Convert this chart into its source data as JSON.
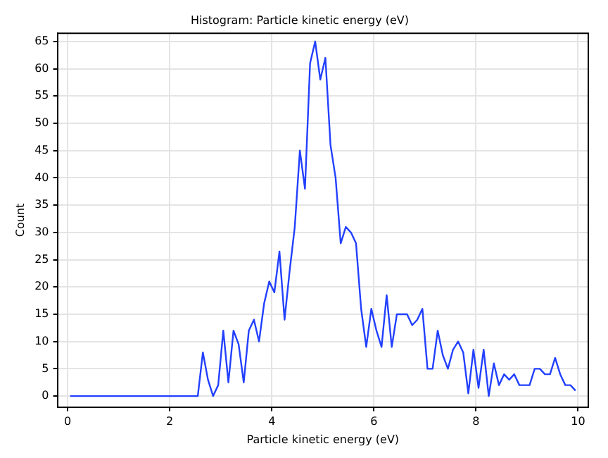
{
  "chart_data": {
    "type": "line",
    "title": "Histogram: Particle kinetic energy (eV)",
    "xlabel": "Particle kinetic energy (eV)",
    "ylabel": "Count",
    "x": [
      0.05,
      2.55,
      2.65,
      2.75,
      2.85,
      2.95,
      3.05,
      3.15,
      3.25,
      3.35,
      3.45,
      3.55,
      3.65,
      3.75,
      3.85,
      3.95,
      4.05,
      4.15,
      4.25,
      4.35,
      4.45,
      4.55,
      4.65,
      4.75,
      4.85,
      4.95,
      5.05,
      5.15,
      5.25,
      5.35,
      5.45,
      5.55,
      5.65,
      5.75,
      5.85,
      5.95,
      6.05,
      6.15,
      6.25,
      6.35,
      6.45,
      6.55,
      6.65,
      6.75,
      6.85,
      6.95,
      7.05,
      7.15,
      7.25,
      7.35,
      7.45,
      7.55,
      7.65,
      7.75,
      7.85,
      7.95,
      8.05,
      8.15,
      8.25,
      8.35,
      8.45,
      8.55,
      8.65,
      8.75,
      8.85,
      8.95,
      9.05,
      9.15,
      9.25,
      9.35,
      9.45,
      9.55,
      9.65,
      9.75,
      9.85,
      9.95
    ],
    "series": [
      {
        "color": "#2240ff",
        "values": [
          0,
          0,
          8,
          3,
          0,
          2,
          12,
          2.5,
          12,
          9.5,
          2.5,
          12,
          14,
          10,
          17,
          21,
          19,
          26.5,
          14,
          23,
          31,
          45,
          38,
          61,
          65,
          58,
          62,
          46,
          40,
          28,
          31,
          30,
          28,
          16,
          9,
          16,
          12,
          9,
          18.5,
          9,
          15,
          15,
          15,
          13,
          14,
          16,
          5,
          5,
          12,
          7.5,
          5,
          8.5,
          10,
          8,
          0.5,
          8.5,
          1.5,
          8.5,
          0,
          6,
          2,
          4,
          3,
          4,
          2,
          2,
          2,
          5,
          5,
          4,
          4,
          7,
          4,
          2,
          2,
          1
        ]
      }
    ],
    "xlim": [
      -0.2,
      10.2
    ],
    "ylim": [
      -2,
      66.5
    ],
    "xticks": [
      0,
      2,
      4,
      6,
      8,
      10
    ],
    "yticks": [
      0,
      5,
      10,
      15,
      20,
      25,
      30,
      35,
      40,
      45,
      50,
      55,
      60,
      65
    ],
    "grid": true,
    "legend": false,
    "marker": "none",
    "line_style": "solid"
  }
}
